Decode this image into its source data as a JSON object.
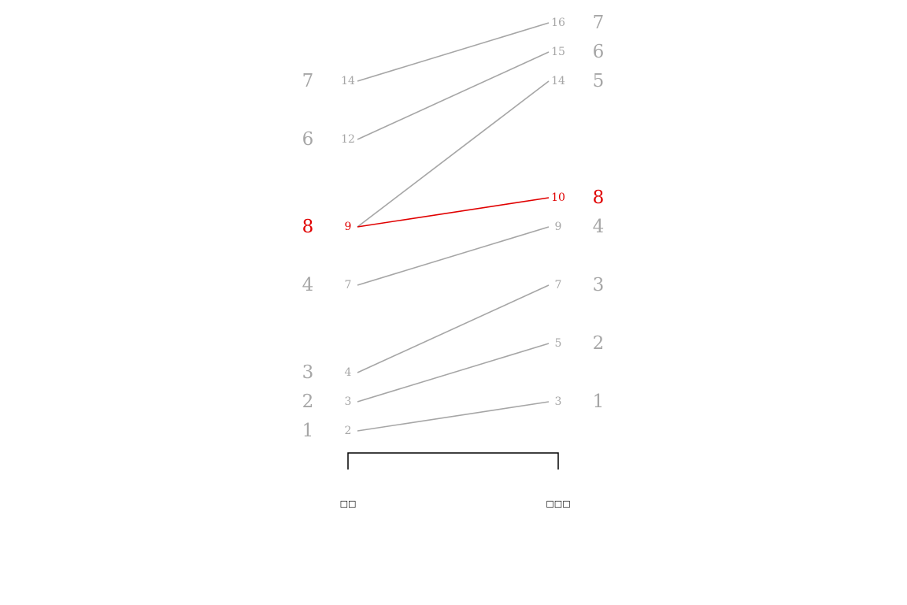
{
  "chart_data": {
    "type": "slope",
    "x": [
      "□□",
      "□□□"
    ],
    "colors": {
      "default": "#a6a6a6",
      "highlight": "#e00000",
      "axis": "#000000"
    },
    "ylim": [
      2,
      16
    ],
    "series": [
      {
        "rank_left": 1,
        "left": 2,
        "right": 3,
        "rank_right": 1,
        "highlight": false
      },
      {
        "rank_left": 2,
        "left": 3,
        "right": 5,
        "rank_right": 2,
        "highlight": false
      },
      {
        "rank_left": 3,
        "left": 4,
        "right": 7,
        "rank_right": 3,
        "highlight": false
      },
      {
        "rank_left": 4,
        "left": 7,
        "right": 9,
        "rank_right": 4,
        "highlight": false
      },
      {
        "rank_left": 8,
        "left": 9,
        "right": 10,
        "rank_right": 8,
        "highlight": true
      },
      {
        "rank_left": 8,
        "left": 9,
        "right": 14,
        "rank_right": 5,
        "highlight": false,
        "hide_left_labels": true
      },
      {
        "rank_left": 6,
        "left": 12,
        "right": 15,
        "rank_right": 6,
        "highlight": false
      },
      {
        "rank_left": 7,
        "left": 14,
        "right": 16,
        "rank_right": 7,
        "highlight": false
      }
    ]
  }
}
